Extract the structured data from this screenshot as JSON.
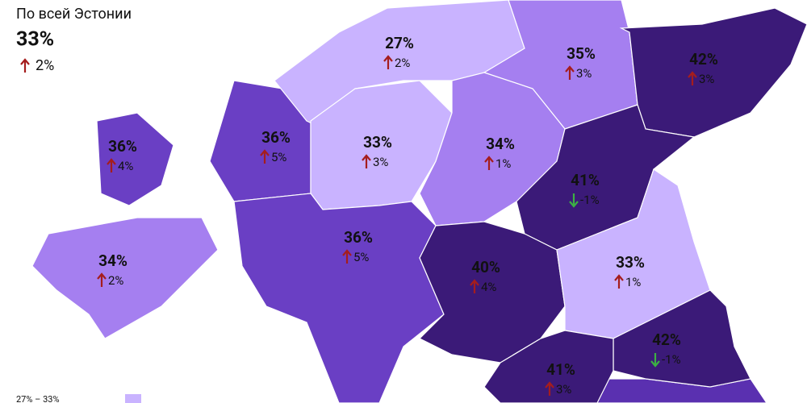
{
  "summary": {
    "title": "По всей Эстонии",
    "value": "33%",
    "change": "2%",
    "trend": "up"
  },
  "regions": [
    {
      "value": "36%",
      "change": "4%",
      "trend": "up",
      "color": "#6a3fc4"
    },
    {
      "value": "34%",
      "change": "2%",
      "trend": "up",
      "color": "#a57ff0"
    },
    {
      "value": "36%",
      "change": "5%",
      "trend": "up",
      "color": "#6a3fc4"
    },
    {
      "value": "27%",
      "change": "2%",
      "trend": "up",
      "color": "#c9b3ff"
    },
    {
      "value": "33%",
      "change": "3%",
      "trend": "up",
      "color": "#c9b3ff"
    },
    {
      "value": "35%",
      "change": "3%",
      "trend": "up",
      "color": "#a57ff0"
    },
    {
      "value": "42%",
      "change": "3%",
      "trend": "up",
      "color": "#3b1a78"
    },
    {
      "value": "34%",
      "change": "1%",
      "trend": "up",
      "color": "#a57ff0"
    },
    {
      "value": "41%",
      "change": "-1%",
      "trend": "down",
      "color": "#3b1a78"
    },
    {
      "value": "36%",
      "change": "5%",
      "trend": "up",
      "color": "#6a3fc4"
    },
    {
      "value": "40%",
      "change": "4%",
      "trend": "up",
      "color": "#3b1a78"
    },
    {
      "value": "33%",
      "change": "1%",
      "trend": "up",
      "color": "#c9b3ff"
    },
    {
      "value": "42%",
      "change": "-1%",
      "trend": "down",
      "color": "#3b1a78"
    },
    {
      "value": "41%",
      "change": "3%",
      "trend": "up",
      "color": "#3b1a78"
    }
  ],
  "legend": {
    "label": "27% – 33%",
    "color": "#c9b3ff"
  }
}
